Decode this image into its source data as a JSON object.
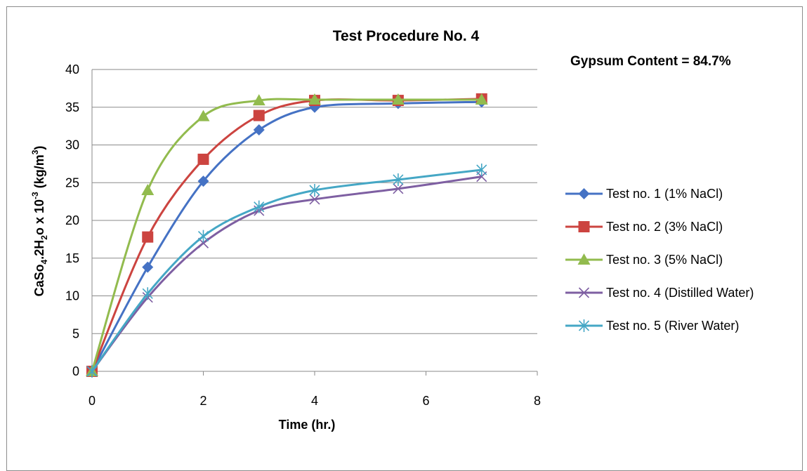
{
  "chart_data": {
    "type": "line",
    "title": "Test Procedure No. 4",
    "annotation": "Gypsum Content = 84.7%",
    "xlabel": "Time  (hr.)",
    "ylabel": "CaSo4.2H2o  x 10-3  (kg/m3)",
    "ylabel_parts": {
      "main": "CaSo",
      "sub1": "4",
      "mid": ".2H",
      "sub2": "2",
      "tail": "o  x 10",
      "sup1": "-3",
      "unit": "  (kg/m",
      "sup2": "3",
      "close": ")"
    },
    "xlim": [
      0,
      8
    ],
    "ylim": [
      0,
      40
    ],
    "x_ticks": [
      0,
      2,
      4,
      6,
      8
    ],
    "y_ticks": [
      0,
      5,
      10,
      15,
      20,
      25,
      30,
      35,
      40
    ],
    "grid": "horizontal",
    "legend_position": "right",
    "series": [
      {
        "name": "Test no. 1 (1% NaCl)",
        "color": "#4572C4",
        "marker": "diamond",
        "x": [
          0,
          1,
          2,
          3,
          4,
          5.5,
          7
        ],
        "y": [
          0,
          13.8,
          25.2,
          32,
          35,
          35.5,
          35.7
        ]
      },
      {
        "name": "Test no. 2 (3% NaCl)",
        "color": "#CC4440",
        "marker": "square",
        "x": [
          0,
          1,
          2,
          3,
          4,
          5.5,
          7
        ],
        "y": [
          0,
          17.8,
          28.1,
          33.9,
          35.9,
          35.9,
          36.1
        ]
      },
      {
        "name": "Test no. 3 (5% NaCl)",
        "color": "#92BB4E",
        "marker": "triangle",
        "x": [
          0,
          1,
          2,
          3,
          4,
          5.5,
          7
        ],
        "y": [
          0,
          24,
          33.8,
          35.9,
          36,
          36,
          36
        ]
      },
      {
        "name": "Test no. 4 (Distilled Water)",
        "color": "#7E5FA2",
        "marker": "x",
        "x": [
          0,
          1,
          2,
          3,
          4,
          5.5,
          7
        ],
        "y": [
          0,
          9.8,
          17,
          21.3,
          22.8,
          24.2,
          25.8
        ]
      },
      {
        "name": "Test no. 5 (River Water)",
        "color": "#45A7C5",
        "marker": "star",
        "x": [
          0,
          1,
          2,
          3,
          4,
          5.5,
          7
        ],
        "y": [
          0,
          10.3,
          17.9,
          21.8,
          24,
          25.4,
          26.7
        ]
      }
    ]
  }
}
